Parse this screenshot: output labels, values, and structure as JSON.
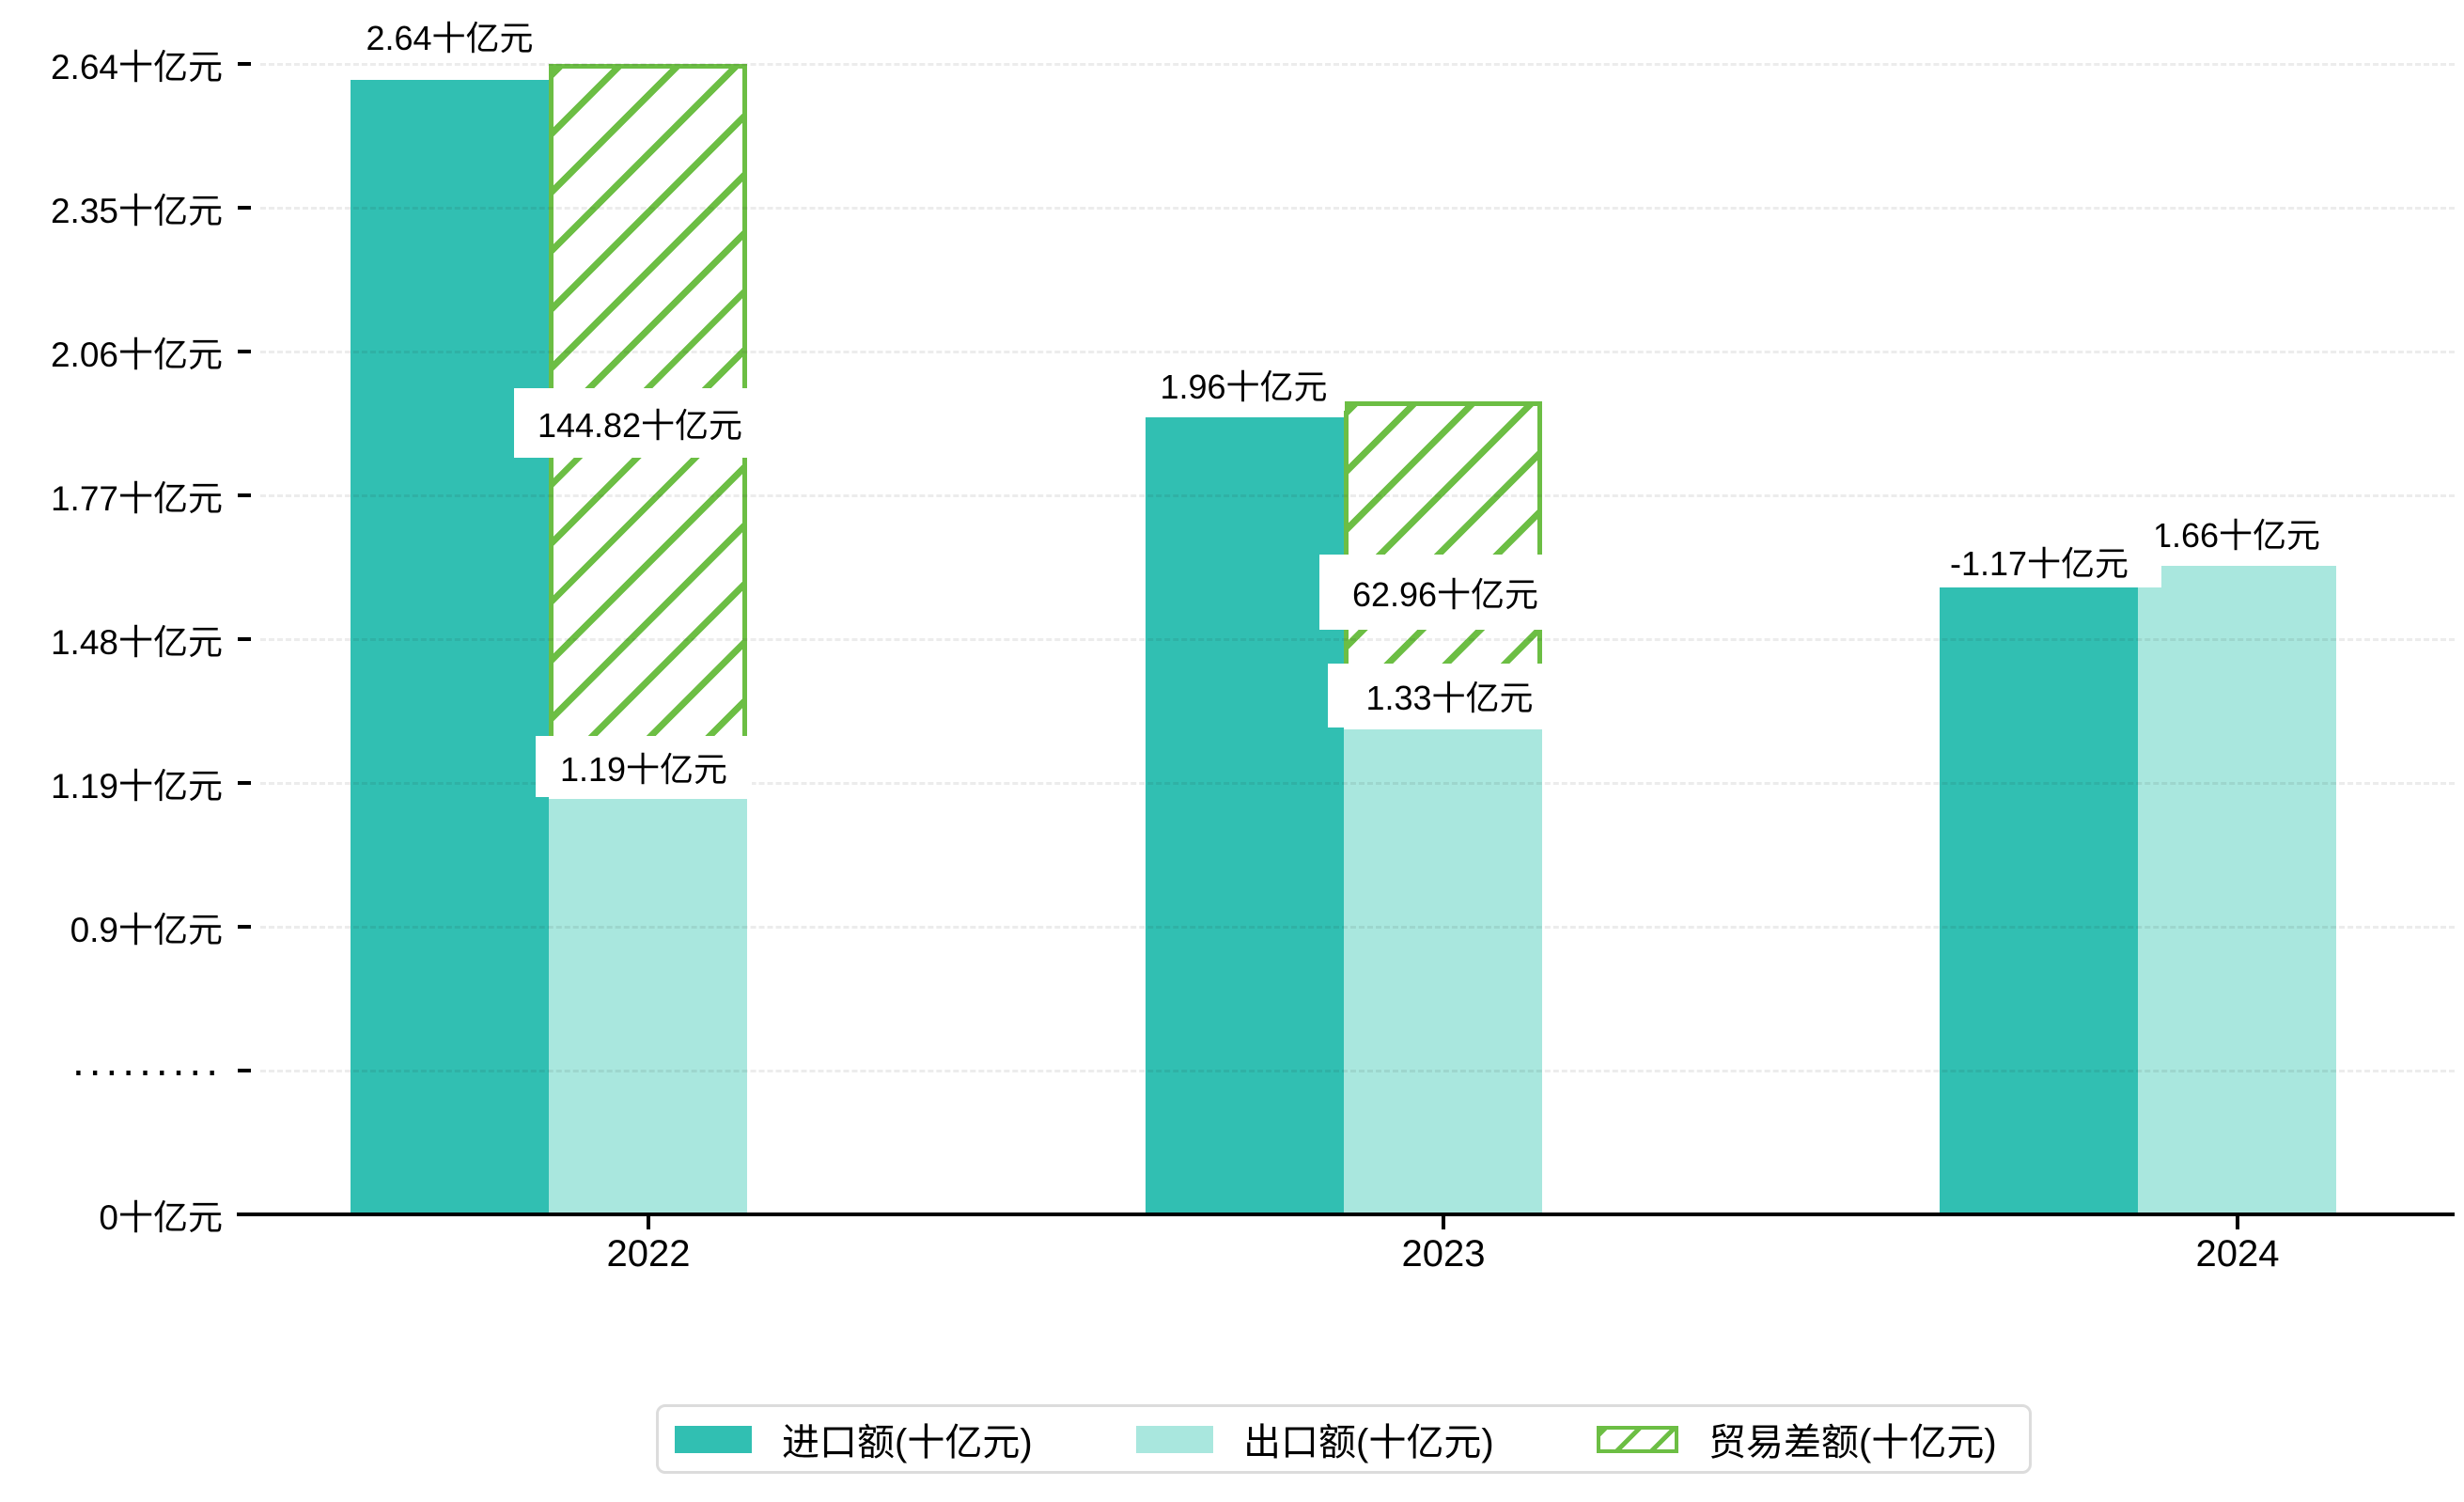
{
  "chart_data": {
    "type": "bar",
    "title": "",
    "categories": [
      "2022",
      "2023",
      "2024"
    ],
    "series": [
      {
        "name": "进口额(十亿元)",
        "role": "import",
        "color": "#31bfb2",
        "values": [
          2.64,
          1.96,
          1.62
        ],
        "data_labels": [
          "2.64十亿元",
          "1.96十亿元",
          ""
        ]
      },
      {
        "name": "出口额(十亿元)",
        "role": "export",
        "color": "#a9e7de",
        "values": [
          1.19,
          1.33,
          1.66
        ],
        "data_labels": [
          "1.19十亿元",
          "1.33十亿元",
          "1.66十亿元"
        ]
      },
      {
        "name": "贸易差额(十亿元)",
        "role": "trade-balance",
        "color": "#6cbe44",
        "pattern": "diagonal-hatch",
        "values": [
          144.82,
          62.96,
          -1.17
        ],
        "data_labels": [
          "144.82十亿元",
          "62.96十亿元",
          "-1.17十亿元"
        ]
      }
    ],
    "x_tick_labels": [
      "2022",
      "2023",
      "2024"
    ],
    "y_tick_labels": [
      "2.64十亿元",
      "2.35十亿元",
      "2.06十亿元",
      "1.77十亿元",
      "1.48十亿元",
      "1.19十亿元",
      "0.9十亿元",
      ".........",
      "0十亿元"
    ],
    "y_tick_values": [
      2.64,
      2.35,
      2.06,
      1.77,
      1.48,
      1.19,
      0.9,
      null,
      0
    ],
    "axis_break": true,
    "ylim": [
      0,
      2.78
    ],
    "grid": {
      "horizontal": true,
      "style": "dashed",
      "color": "#e9e9e9"
    },
    "axis_color": "#000000",
    "legend": {
      "position": "bottom",
      "border_color": "#dcdcdc"
    }
  }
}
